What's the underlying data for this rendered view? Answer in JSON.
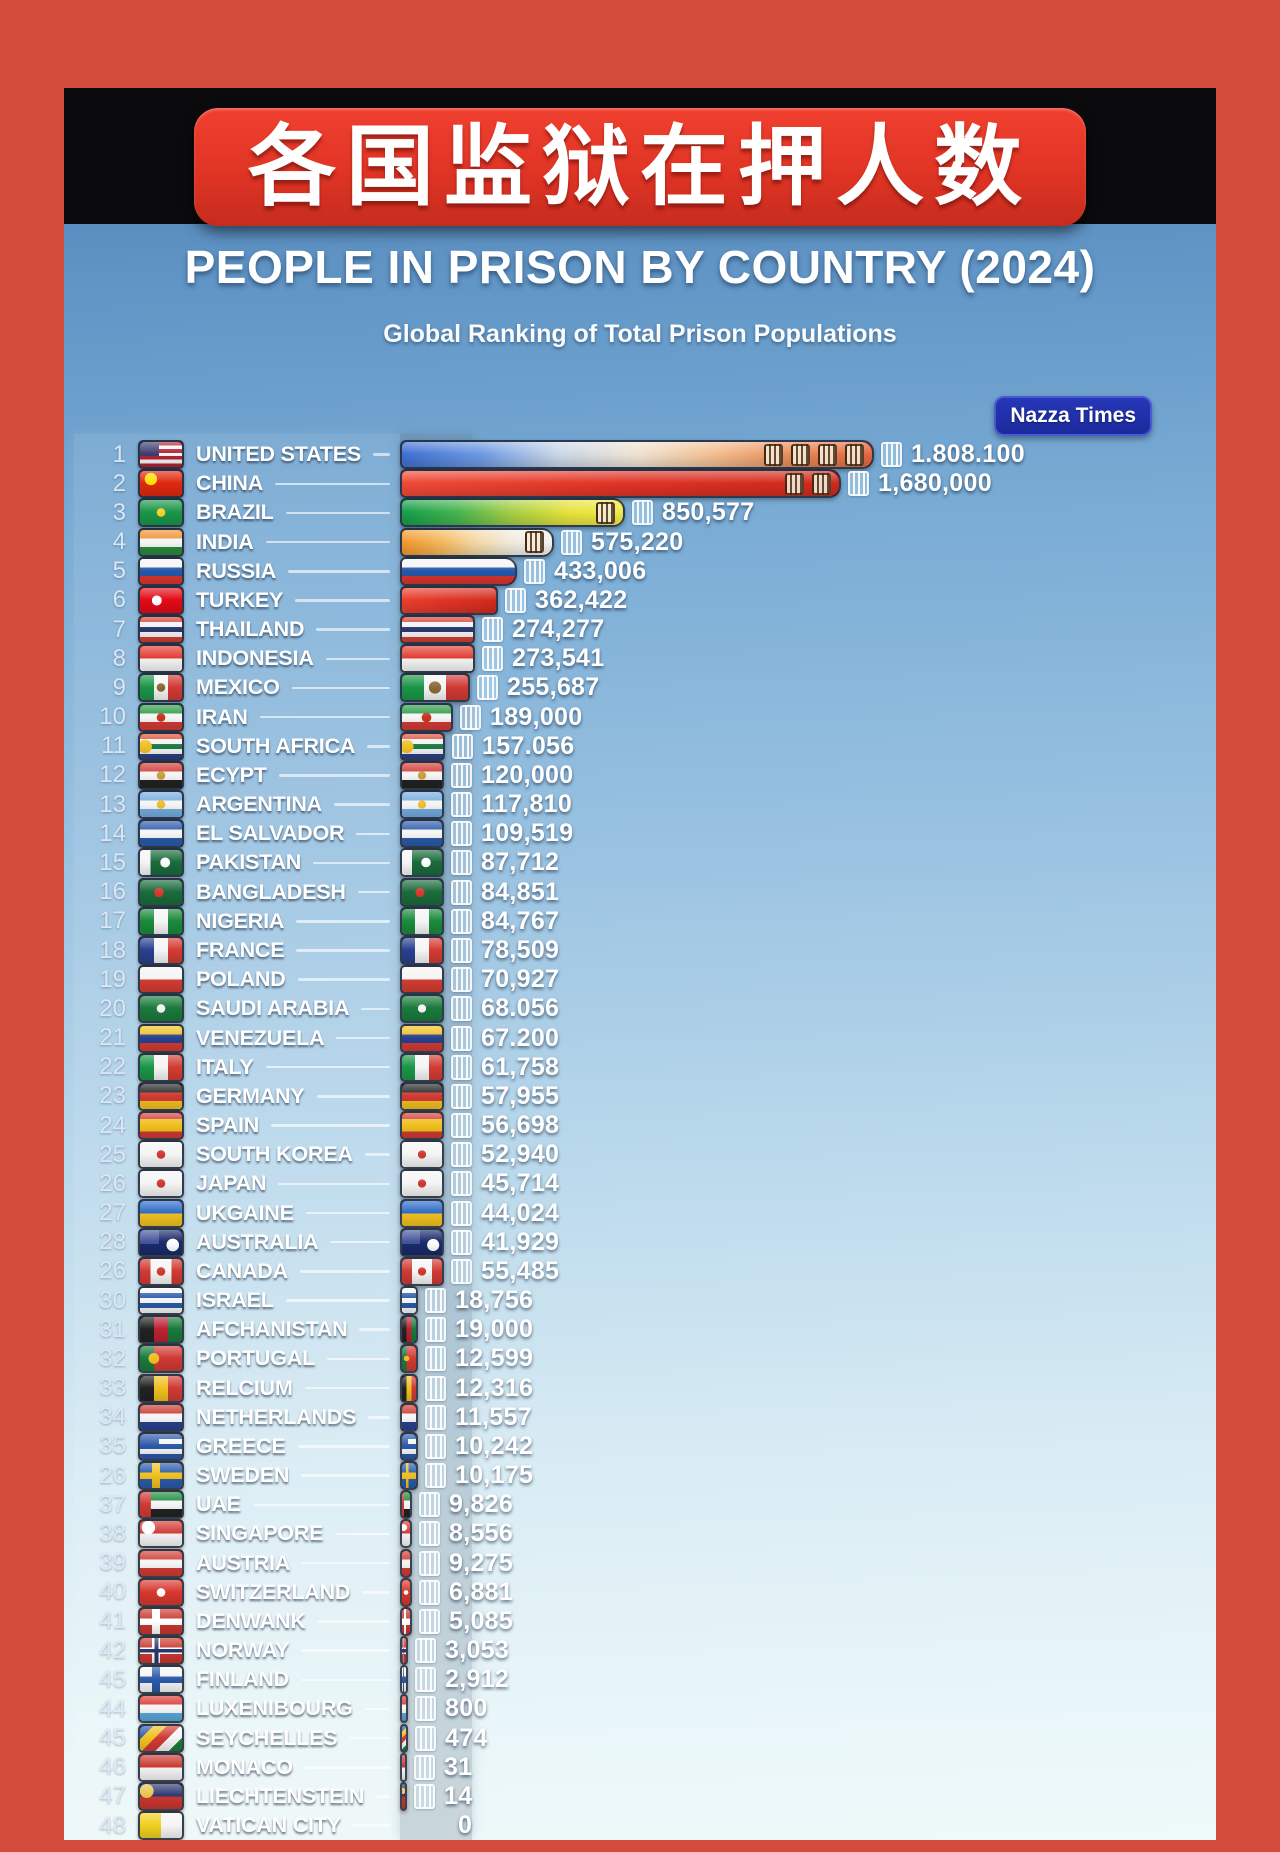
{
  "frame_color": "#d24b3b",
  "header": {
    "banner_cn": "各国监狱在押人数",
    "badge": "Nazza Times"
  },
  "chart_data": {
    "type": "bar",
    "title": "PEOPLE IN PRISON BY COUNTRY (2024)",
    "subtitle": "Global Ranking of Total Prison Populations",
    "banner_cn": "各国监狱在押人数",
    "source_badge": "Nazza Times",
    "orientation": "horizontal",
    "value_unit": "people in prison",
    "xlim": [
      0,
      1808100
    ],
    "rows": [
      {
        "rank": "1",
        "country": "UNITED STATES",
        "label": "1.808.100",
        "value": 1808100,
        "squares": 4,
        "flag": {
          "d": "h",
          "c": [
            "#b22234",
            "#f5f5f5",
            "#b22234",
            "#f5f5f5",
            "#b22234",
            "#f5f5f5",
            "#b22234"
          ],
          "canton": "#3c3b6e"
        },
        "bar": {
          "d": "v",
          "smooth": true,
          "c": [
            "#3f6fd2",
            "#6f9be2",
            "#c9d6e8",
            "#efe3d2",
            "#f2bd8e",
            "#e88c5a",
            "#e2653f"
          ]
        }
      },
      {
        "rank": "2",
        "country": "CHINA",
        "label": "1,680,000",
        "value": 1680000,
        "squares": 2,
        "flag": {
          "d": "h",
          "c": [
            "#de2910"
          ],
          "em": "#ffde00",
          "emx": 26,
          "emy": 32
        },
        "bar": {
          "d": "v",
          "smooth": true,
          "c": [
            "#ef4a36",
            "#e03426",
            "#cf2a1c"
          ]
        }
      },
      {
        "rank": "3",
        "country": "BRAZIL",
        "label": "850,577",
        "value": 850577,
        "squares": 1,
        "flag": {
          "d": "h",
          "c": [
            "#1a9648"
          ],
          "em": "#f8d02c"
        },
        "bar": {
          "d": "v",
          "smooth": true,
          "c": [
            "#149e48",
            "#46b450",
            "#a6cf45",
            "#e6e23c",
            "#f2ea4a"
          ]
        }
      },
      {
        "rank": "4",
        "country": "INDIA",
        "label": "575,220",
        "value": 575220,
        "squares": 1,
        "flag": {
          "d": "h",
          "c": [
            "#f09030",
            "#f5f5f5",
            "#2a8a3c"
          ]
        },
        "bar": {
          "d": "v",
          "smooth": true,
          "c": [
            "#f1962b",
            "#f5b659",
            "#f3d9a6",
            "#f0ece2",
            "#f4f2ec"
          ]
        }
      },
      {
        "rank": "5",
        "country": "RUSSIA",
        "label": "433,006",
        "value": 433006,
        "flag": {
          "d": "h",
          "c": [
            "#f5f5f5",
            "#2458a8",
            "#d8352e"
          ]
        }
      },
      {
        "rank": "6",
        "country": "TURKEY",
        "label": "362,422",
        "value": 362422,
        "flag": {
          "d": "h",
          "c": [
            "#e30a17"
          ],
          "em": "#ffffff",
          "emx": 40
        },
        "bar": {
          "d": "v",
          "smooth": true,
          "c": [
            "#ea3f2e",
            "#d32a1c"
          ]
        }
      },
      {
        "rank": "7",
        "country": "THAILAND",
        "label": "274,277",
        "value": 274277,
        "flag": {
          "d": "h",
          "c": [
            "#d23c32",
            "#f2f2f2",
            "#2a3570",
            "#f2f2f2",
            "#d23c32"
          ]
        }
      },
      {
        "rank": "8",
        "country": "INDONESIA",
        "label": "273,541",
        "value": 273541,
        "flag": {
          "d": "h",
          "c": [
            "#e23c30",
            "#f5f5f5"
          ]
        }
      },
      {
        "rank": "9",
        "country": "MEXICO",
        "label": "255,687",
        "value": 255687,
        "flag": {
          "d": "v",
          "c": [
            "#1a9648",
            "#f5f5f5",
            "#d03a34"
          ],
          "em": "#8a6a3a"
        }
      },
      {
        "rank": "10",
        "country": "IRAN",
        "label": "189,000",
        "value": 189000,
        "flag": {
          "d": "h",
          "c": [
            "#2a9a44",
            "#f5f5f5",
            "#d03a34"
          ],
          "em": "#cc3322"
        }
      },
      {
        "rank": "11",
        "country": "SOUTH AFRICA",
        "label": "157.056",
        "value": 157056,
        "flag": {
          "d": "h",
          "c": [
            "#dd4a32",
            "#f2f2f2",
            "#1e7a44",
            "#f2f2f2",
            "#2c3f86"
          ],
          "em": "#f0c028",
          "emx": 12
        }
      },
      {
        "rank": "12",
        "country": "ECYPT",
        "label": "120,000",
        "value": 120000,
        "flag": {
          "d": "h",
          "c": [
            "#d03a34",
            "#f5f5f5",
            "#222222"
          ],
          "em": "#c8a040"
        }
      },
      {
        "rank": "13",
        "country": "ARGENTINA",
        "label": "117,810",
        "value": 117810,
        "flag": {
          "d": "h",
          "c": [
            "#74acdf",
            "#f5f5f5",
            "#74acdf"
          ],
          "em": "#f0c030"
        }
      },
      {
        "rank": "14",
        "country": "EL SALVADOR",
        "label": "109,519",
        "value": 109519,
        "flag": {
          "d": "h",
          "c": [
            "#2a5aa8",
            "#f5f5f5",
            "#2a5aa8"
          ]
        }
      },
      {
        "rank": "15",
        "country": "PAKISTAN",
        "label": "87,712",
        "value": 87712,
        "flag": {
          "d": "v",
          "c": [
            "#f5f5f5",
            "#1a6b3c",
            "#1a6b3c",
            "#1a6b3c"
          ],
          "em": "#ffffff",
          "emx": 60
        }
      },
      {
        "rank": "16",
        "country": "BANGLADESH",
        "label": "84,851",
        "value": 84851,
        "flag": {
          "d": "h",
          "c": [
            "#1a6b3c"
          ],
          "em": "#e0382e",
          "emx": 45
        }
      },
      {
        "rank": "17",
        "country": "NIGERIA",
        "label": "84,767",
        "value": 84767,
        "flag": {
          "d": "v",
          "c": [
            "#1a8a3c",
            "#f5f5f5",
            "#1a8a3c"
          ]
        }
      },
      {
        "rank": "18",
        "country": "FRANCE",
        "label": "78,509",
        "value": 78509,
        "flag": {
          "d": "v",
          "c": [
            "#28408f",
            "#f5f5f5",
            "#d23c32"
          ]
        }
      },
      {
        "rank": "19",
        "country": "POLAND",
        "label": "70,927",
        "value": 70927,
        "flag": {
          "d": "h",
          "c": [
            "#f5f5f5",
            "#d23c32"
          ]
        }
      },
      {
        "rank": "20",
        "country": "SAUDI ARABIA",
        "label": "68.056",
        "value": 68056,
        "flag": {
          "d": "h",
          "c": [
            "#1a7a3c"
          ],
          "em": "#f5f5f5"
        }
      },
      {
        "rank": "21",
        "country": "VENEZUELA",
        "label": "67.200",
        "value": 67200,
        "flag": {
          "d": "h",
          "c": [
            "#f0c020",
            "#28408f",
            "#d23c32"
          ]
        }
      },
      {
        "rank": "22",
        "country": "ITALY",
        "label": "61,758",
        "value": 61758,
        "flag": {
          "d": "v",
          "c": [
            "#1a9648",
            "#f5f5f5",
            "#d23c32"
          ]
        }
      },
      {
        "rank": "23",
        "country": "GERMANY",
        "label": "57,955",
        "value": 57955,
        "flag": {
          "d": "h",
          "c": [
            "#222222",
            "#d03a34",
            "#f0c020"
          ]
        }
      },
      {
        "rank": "24",
        "country": "SPAIN",
        "label": "56,698",
        "value": 56698,
        "flag": {
          "d": "h",
          "c": [
            "#d03a34",
            "#f0c020",
            "#f0c020",
            "#d03a34"
          ]
        }
      },
      {
        "rank": "25",
        "country": "SOUTH KOREA",
        "label": "52,940",
        "value": 52940,
        "flag": {
          "d": "h",
          "c": [
            "#f5f5f5"
          ],
          "em": "#d03a34"
        }
      },
      {
        "rank": "26",
        "country": "JAPAN",
        "label": "45,714",
        "value": 45714,
        "flag": {
          "d": "h",
          "c": [
            "#f5f5f5"
          ],
          "em": "#d03a34"
        }
      },
      {
        "rank": "27",
        "country": "UKGAINE",
        "label": "44,024",
        "value": 44024,
        "flag": {
          "d": "h",
          "c": [
            "#2a6ac8",
            "#f0c020"
          ]
        }
      },
      {
        "rank": "28",
        "country": "AUSTRALIA",
        "label": "41,929",
        "value": 41929,
        "flag": {
          "d": "h",
          "c": [
            "#1a2a6b"
          ],
          "canton": "#44549a",
          "em": "#ffffff",
          "emx": 78,
          "emy": 60
        }
      },
      {
        "rank": "26",
        "country": "CANADA",
        "label": "55,485",
        "value": 55485,
        "flag": {
          "d": "v",
          "c": [
            "#d03a34",
            "#f5f5f5",
            "#f5f5f5",
            "#d03a34"
          ],
          "em": "#d03a34"
        }
      },
      {
        "rank": "30",
        "country": "ISRAEL",
        "label": "18,756",
        "value": 18756,
        "flag": {
          "d": "h",
          "c": [
            "#f5f5f5",
            "#2a58a8",
            "#f5f5f5",
            "#2a58a8",
            "#f5f5f5"
          ]
        }
      },
      {
        "rank": "31",
        "country": "AFCHANISTAN",
        "label": "19,000",
        "value": 19000,
        "flag": {
          "d": "v",
          "c": [
            "#222222",
            "#bb2233",
            "#1a7a3c"
          ]
        }
      },
      {
        "rank": "32",
        "country": "PORTUGAL",
        "label": "12,599",
        "value": 12599,
        "flag": {
          "d": "v",
          "c": [
            "#1a7a3c",
            "#d03a34",
            "#d03a34"
          ],
          "em": "#f0c020",
          "emx": 33
        }
      },
      {
        "rank": "33",
        "country": "RELCIUM",
        "label": "12,316",
        "value": 12316,
        "flag": {
          "d": "v",
          "c": [
            "#222222",
            "#f0c020",
            "#d03a34"
          ]
        }
      },
      {
        "rank": "34",
        "country": "NETHERLANDS",
        "label": "11,557",
        "value": 11557,
        "flag": {
          "d": "h",
          "c": [
            "#c8372e",
            "#f5f5f5",
            "#28408f"
          ]
        }
      },
      {
        "rank": "35",
        "country": "GREECE",
        "label": "10,242",
        "value": 10242,
        "flag": {
          "d": "h",
          "c": [
            "#2a58a8",
            "#f5f5f5",
            "#2a58a8",
            "#f5f5f5",
            "#2a58a8"
          ],
          "canton": "#2a58a8"
        }
      },
      {
        "rank": "26",
        "country": "SWEDEN",
        "label": "10,175",
        "value": 10175,
        "flag": {
          "d": "h",
          "c": [
            "#2a5aa8"
          ],
          "cross": "#f0c020"
        }
      },
      {
        "rank": "37",
        "country": "UAE",
        "label": "9,826",
        "value": 9826,
        "flag": {
          "d": "h",
          "c": [
            "#1a8a3c",
            "#f5f5f5",
            "#222222"
          ],
          "hoist": "#d03a34"
        }
      },
      {
        "rank": "38",
        "country": "SINGAPORE",
        "label": "8,556",
        "value": 8556,
        "flag": {
          "d": "h",
          "c": [
            "#d03a34",
            "#f5f5f5"
          ],
          "em": "#ffffff",
          "emx": 20,
          "emy": 26
        }
      },
      {
        "rank": "39",
        "country": "AUSTRIA",
        "label": "9,275",
        "value": 9275,
        "flag": {
          "d": "h",
          "c": [
            "#d03a34",
            "#f5f5f5",
            "#d03a34"
          ]
        }
      },
      {
        "rank": "40",
        "country": "SWITZERLAND",
        "label": "6,881",
        "value": 6881,
        "flag": {
          "d": "h",
          "c": [
            "#d8372e"
          ],
          "em": "#ffffff"
        }
      },
      {
        "rank": "41",
        "country": "DENWANK",
        "label": "5,085",
        "value": 5085,
        "flag": {
          "d": "h",
          "c": [
            "#c8372e"
          ],
          "cross": "#ffffff"
        }
      },
      {
        "rank": "42",
        "country": "NORWAY",
        "label": "3,053",
        "value": 3053,
        "flag": {
          "d": "h",
          "c": [
            "#c8372e"
          ],
          "cross": "#ffffff",
          "cross2": "#2a3570"
        }
      },
      {
        "rank": "45",
        "country": "FINLAND",
        "label": "2,912",
        "value": 2912,
        "flag": {
          "d": "h",
          "c": [
            "#f5f5f5"
          ],
          "cross": "#2a5aa8"
        }
      },
      {
        "rank": "44",
        "country": "LUXENIBOURG",
        "label": "800",
        "value": 800,
        "flag": {
          "d": "h",
          "c": [
            "#d8372e",
            "#f5f5f5",
            "#5aa8d8"
          ]
        }
      },
      {
        "rank": "45",
        "country": "SEYCHELLES",
        "label": "474",
        "value": 474,
        "flag": {
          "d": "diag",
          "c": [
            "#2a58a8",
            "#f0c020",
            "#d03a34",
            "#f5f5f5",
            "#1a7a3c"
          ]
        }
      },
      {
        "rank": "46",
        "country": "MONACO",
        "label": "31",
        "value": 31,
        "flag": {
          "d": "h",
          "c": [
            "#c8372e",
            "#f5f5f5"
          ]
        }
      },
      {
        "rank": "47",
        "country": "LIECHTENSTEIN",
        "label": "14",
        "value": 14,
        "flag": {
          "d": "h",
          "c": [
            "#2a3570",
            "#c8372e"
          ],
          "em": "#e8c34a",
          "emx": 16,
          "emy": 28
        }
      },
      {
        "rank": "48",
        "country": "VATICAN CITY",
        "label": "0",
        "value": 0,
        "flag": {
          "d": "v",
          "c": [
            "#f0d020",
            "#f5f5f5"
          ]
        }
      }
    ]
  }
}
